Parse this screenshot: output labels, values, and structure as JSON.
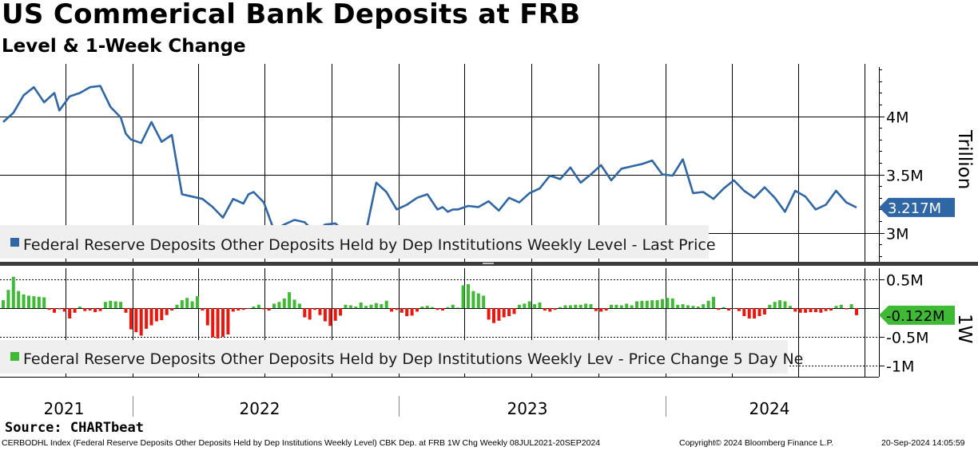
{
  "title": "US Commerical Bank Deposits at FRB",
  "subtitle": "Level & 1-Week Change",
  "source": "Source: CHARTbeat",
  "footer": {
    "description": "CERBODHL Index (Federal Reserve Deposits Other Deposits Held by Dep Institutions Weekly Level) CBK Dep. at FRB 1W Chg  Weekly 08JUL2021-20SEP2024",
    "copyright": "Copyright© 2024 Bloomberg Finance L.P.",
    "timestamp": "20-Sep-2024 14:05:59"
  },
  "colors": {
    "line": "#2f66a5",
    "positive": "#3fba34",
    "negative": "#e8180f",
    "legend_bg": "#efefef"
  },
  "chart_data": [
    {
      "type": "line",
      "series_name": "Federal Reserve Deposits Other Deposits Held by Dep Institutions Weekly Level - Last Price",
      "y_axis_label": "Trillion",
      "y_ticks": [
        "4M",
        "3.5M",
        "3M"
      ],
      "y_tick_values": [
        4.0,
        3.5,
        3.0
      ],
      "ylim": [
        2.75,
        4.45
      ],
      "last_value": 3.217,
      "last_value_label": "3.217M",
      "x_tick_labels": [
        "2021",
        "2022",
        "2023",
        "2024"
      ],
      "x": [
        "2021-07-08",
        "2021-07-22",
        "2021-08-05",
        "2021-08-19",
        "2021-09-02",
        "2021-09-16",
        "2021-09-23",
        "2021-10-07",
        "2021-10-21",
        "2021-11-04",
        "2021-11-18",
        "2021-12-02",
        "2021-12-16",
        "2021-12-23",
        "2021-12-30",
        "2022-01-13",
        "2022-01-27",
        "2022-02-10",
        "2022-02-24",
        "2022-03-10",
        "2022-03-24",
        "2022-04-07",
        "2022-04-21",
        "2022-05-05",
        "2022-05-19",
        "2022-06-02",
        "2022-06-09",
        "2022-06-16",
        "2022-06-30",
        "2022-07-14",
        "2022-07-28",
        "2022-08-11",
        "2022-08-25",
        "2022-09-08",
        "2022-09-22",
        "2022-10-06",
        "2022-10-20",
        "2022-11-03",
        "2022-11-17",
        "2022-12-01",
        "2022-12-15",
        "2022-12-29",
        "2023-01-12",
        "2023-01-26",
        "2023-02-09",
        "2023-02-23",
        "2023-03-02",
        "2023-03-09",
        "2023-03-16",
        "2023-03-23",
        "2023-04-06",
        "2023-04-20",
        "2023-05-04",
        "2023-05-18",
        "2023-06-01",
        "2023-06-15",
        "2023-06-29",
        "2023-07-13",
        "2023-07-27",
        "2023-08-10",
        "2023-08-24",
        "2023-09-07",
        "2023-09-21",
        "2023-10-05",
        "2023-10-19",
        "2023-11-02",
        "2023-11-16",
        "2023-11-30",
        "2023-12-14",
        "2023-12-28",
        "2024-01-11",
        "2024-01-25",
        "2024-02-08",
        "2024-02-22",
        "2024-03-07",
        "2024-03-21",
        "2024-04-04",
        "2024-04-18",
        "2024-05-02",
        "2024-05-16",
        "2024-05-30",
        "2024-06-13",
        "2024-06-27",
        "2024-07-11",
        "2024-07-25",
        "2024-08-08",
        "2024-08-22",
        "2024-09-05",
        "2024-09-19"
      ],
      "values": [
        3.95,
        4.03,
        4.18,
        4.25,
        4.12,
        4.2,
        4.05,
        4.17,
        4.2,
        4.25,
        4.26,
        4.08,
        3.99,
        3.85,
        3.8,
        3.77,
        3.95,
        3.78,
        3.84,
        3.33,
        3.31,
        3.29,
        3.22,
        3.13,
        3.29,
        3.25,
        3.33,
        3.35,
        3.26,
        3.02,
        3.07,
        3.11,
        3.09,
        3.0,
        3.07,
        3.08,
        3.0,
        3.02,
        3.01,
        3.43,
        3.35,
        3.2,
        3.24,
        3.3,
        3.33,
        3.2,
        3.22,
        3.18,
        3.2,
        3.2,
        3.23,
        3.22,
        3.27,
        3.19,
        3.3,
        3.26,
        3.34,
        3.38,
        3.49,
        3.46,
        3.56,
        3.43,
        3.5,
        3.58,
        3.45,
        3.55,
        3.57,
        3.59,
        3.62,
        3.5,
        3.49,
        3.63,
        3.34,
        3.35,
        3.29,
        3.38,
        3.45,
        3.36,
        3.3,
        3.39,
        3.3,
        3.18,
        3.36,
        3.31,
        3.2,
        3.24,
        3.36,
        3.26,
        3.217
      ]
    },
    {
      "type": "bar",
      "series_name": "Federal Reserve Deposits Other Deposits Held by Dep Institutions Weekly Lev - Price Change 5 Day Ne",
      "y_axis_label": "1W",
      "y_ticks": [
        "0.5M",
        "-0.5M",
        "-1M"
      ],
      "y_tick_values": [
        0.5,
        -0.5,
        -1.0
      ],
      "ylim": [
        -1.2,
        0.7
      ],
      "last_value": -0.122,
      "last_value_label": "-0.122M",
      "values": [
        0.14,
        0.32,
        0.55,
        0.3,
        0.24,
        0.22,
        0.21,
        0.2,
        0.19,
        -0.03,
        -0.08,
        -0.02,
        -0.06,
        -0.18,
        -0.08,
        0.03,
        -0.05,
        -0.04,
        -0.07,
        -0.05,
        0.11,
        0.13,
        0.12,
        0.11,
        -0.08,
        -0.37,
        -0.42,
        -0.48,
        -0.36,
        -0.3,
        -0.23,
        -0.21,
        -0.12,
        -0.04,
        0.06,
        0.14,
        0.18,
        0.12,
        0.21,
        -0.04,
        -0.3,
        -0.51,
        -0.53,
        -0.5,
        -0.46,
        -0.06,
        -0.04,
        -0.03,
        -0.01,
        0.03,
        0.06,
        -0.02,
        -0.04,
        0.08,
        0.11,
        0.17,
        0.28,
        0.15,
        0.08,
        -0.16,
        -0.2,
        -0.03,
        -0.12,
        -0.23,
        -0.31,
        -0.22,
        -0.13,
        0.06,
        0.05,
        0.03,
        0.1,
        0.04,
        0.06,
        0.09,
        0.07,
        0.13,
        -0.06,
        -0.03,
        -0.08,
        -0.14,
        -0.13,
        -0.06,
        0.03,
        0.04,
        0.02,
        -0.03,
        -0.04,
        0.02,
        0.06,
        0.01,
        0.4,
        0.42,
        0.3,
        0.26,
        0.22,
        -0.2,
        -0.26,
        -0.22,
        -0.16,
        -0.14,
        -0.1,
        0.06,
        0.08,
        0.12,
        0.07,
        0.1,
        -0.04,
        -0.06,
        -0.03,
        0.02,
        0.05,
        0.05,
        0.06,
        0.06,
        0.08,
        0.07,
        -0.05,
        -0.06,
        -0.04,
        0.06,
        0.06,
        0.05,
        0.08,
        0.05,
        0.12,
        0.13,
        0.13,
        0.14,
        0.14,
        0.16,
        0.18,
        0.17,
        0.06,
        0.07,
        0.05,
        0.04,
        0.03,
        0.07,
        0.13,
        0.2,
        -0.03,
        0.02,
        -0.04,
        -0.01,
        -0.05,
        -0.14,
        -0.18,
        -0.18,
        -0.14,
        -0.11,
        0.06,
        0.11,
        0.14,
        0.12,
        0.04,
        -0.06,
        -0.08,
        -0.08,
        -0.07,
        -0.07,
        -0.08,
        -0.05,
        -0.04,
        0.04,
        0.06,
        -0.02,
        0.07,
        -0.122
      ]
    }
  ]
}
